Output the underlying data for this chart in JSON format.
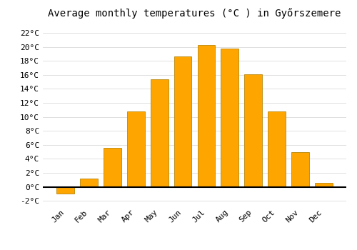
{
  "title": "Average monthly temperatures (°C ) in Győrszemere",
  "months": [
    "Jan",
    "Feb",
    "Mar",
    "Apr",
    "May",
    "Jun",
    "Jul",
    "Aug",
    "Sep",
    "Oct",
    "Nov",
    "Dec"
  ],
  "values": [
    -1.0,
    1.2,
    5.6,
    10.8,
    15.4,
    18.6,
    20.3,
    19.8,
    16.1,
    10.8,
    5.0,
    0.6
  ],
  "bar_color_positive": "#FFA500",
  "bar_color_negative": "#FFA500",
  "bar_edge_color": "#B8860B",
  "background_color": "#ffffff",
  "grid_color": "#e0e0e0",
  "ylim": [
    -2.6,
    23.5
  ],
  "yticks": [
    0,
    2,
    4,
    6,
    8,
    10,
    12,
    14,
    16,
    18,
    20,
    22
  ],
  "ytick_extra": -2,
  "title_fontsize": 10,
  "tick_fontsize": 8
}
